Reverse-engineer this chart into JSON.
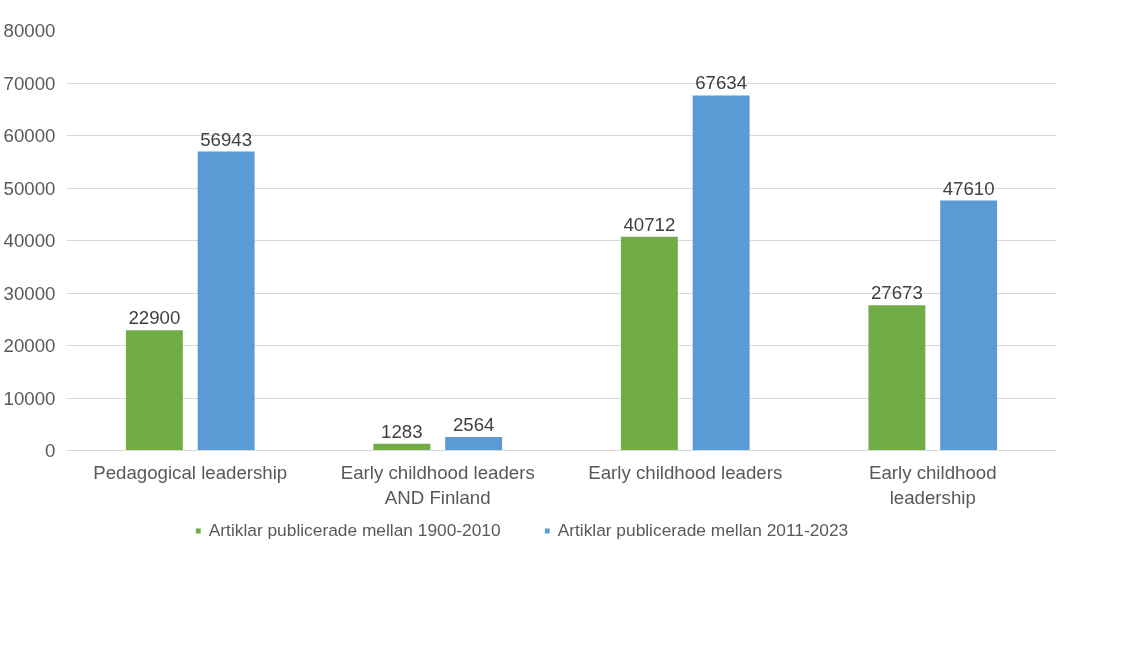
{
  "chart_data": {
    "type": "bar",
    "categories": [
      "Pedagogical leadership",
      "Early childhood leaders AND Finland",
      "Early childhood leaders",
      "Early childhood leadership"
    ],
    "series": [
      {
        "name": "Artiklar publicerade mellan 1900-2010",
        "color": "#70ad47",
        "values": [
          22900,
          1283,
          40712,
          27673
        ]
      },
      {
        "name": "Artiklar publicerade mellan 2011-2023",
        "color": "#5b9bd5",
        "values": [
          56943,
          2564,
          67634,
          47610
        ]
      }
    ],
    "ylim": [
      0,
      80000
    ],
    "yticks": [
      0,
      10000,
      20000,
      30000,
      40000,
      50000,
      60000,
      70000,
      80000
    ],
    "grid": "y",
    "legend": "bottom",
    "data_labels": true
  }
}
